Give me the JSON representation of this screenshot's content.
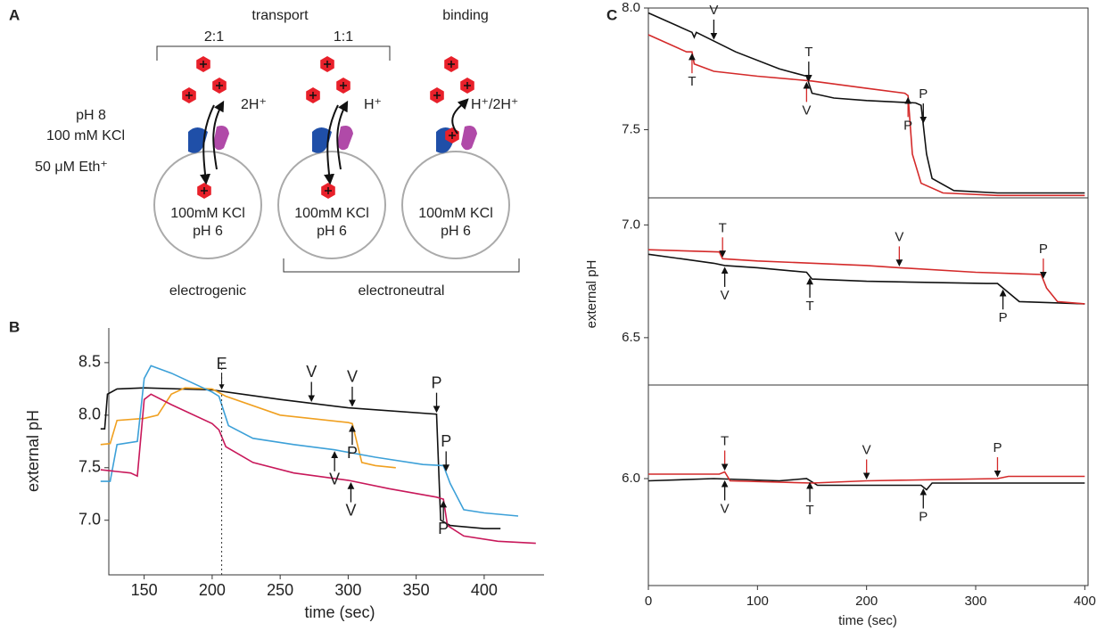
{
  "panel_labels": [
    "A",
    "B",
    "C"
  ],
  "diagram": {
    "top_labels": [
      "transport",
      "binding"
    ],
    "ratios": [
      "2:1",
      "1:1"
    ],
    "outside": [
      "pH 8",
      "100 mM KCl",
      "50 μM Eth⁺"
    ],
    "fluxes": [
      "2H⁺",
      "H⁺",
      "H⁺/2H⁺"
    ],
    "vesicles": [
      [
        "100mM KCl",
        "pH 6"
      ],
      [
        "100mM KCl",
        "pH 6"
      ],
      [
        "100mM KCl",
        "pH 6"
      ]
    ],
    "bottom_labels": [
      "electrogenic",
      "electroneutral"
    ]
  },
  "chart_data": [
    {
      "type": "line",
      "xlabel": "time (sec)",
      "ylabel": "external pH",
      "xlim": [
        124,
        444
      ],
      "ylim": [
        6.48,
        8.83
      ],
      "xticks": [
        150,
        200,
        250,
        300,
        350,
        400
      ],
      "yticks": [
        {
          "value": 7,
          "label": "7.0"
        },
        7.5,
        {
          "value": 8,
          "label": "8.0"
        },
        8.5
      ],
      "box": false,
      "annotation_color": "#111111",
      "reference_line": {
        "x": 207,
        "label": "E"
      },
      "series": [
        {
          "color": "#111111",
          "annotations": [
            "V",
            "V",
            "P"
          ],
          "x": [
            118,
            121,
            123,
            130,
            150,
            200,
            250,
            300,
            365,
            368,
            375,
            400,
            412
          ],
          "values": [
            7.87,
            7.87,
            8.2,
            8.25,
            8.26,
            8.24,
            8.15,
            8.07,
            8.01,
            7.0,
            6.95,
            6.92,
            6.92
          ]
        },
        {
          "color": "#f0a020",
          "annotations": [
            "P"
          ],
          "x": [
            118,
            125,
            130,
            150,
            160,
            170,
            180,
            200,
            210,
            250,
            300,
            303,
            310,
            320,
            335
          ],
          "values": [
            7.72,
            7.73,
            7.95,
            7.97,
            8.0,
            8.2,
            8.26,
            8.25,
            8.18,
            8.0,
            7.93,
            7.92,
            7.55,
            7.52,
            7.5
          ]
        },
        {
          "color": "#3ca0d8",
          "annotations": [
            "V",
            "P"
          ],
          "x": [
            118,
            125,
            130,
            145,
            150,
            155,
            170,
            200,
            205,
            212,
            230,
            260,
            290,
            320,
            355,
            370,
            375,
            385,
            400,
            425
          ],
          "values": [
            7.37,
            7.37,
            7.72,
            7.75,
            8.35,
            8.47,
            8.4,
            8.22,
            8.18,
            7.9,
            7.78,
            7.72,
            7.67,
            7.6,
            7.53,
            7.52,
            7.35,
            7.1,
            7.07,
            7.04
          ]
        },
        {
          "color": "#c8185a",
          "annotations": [
            "V",
            "P"
          ],
          "x": [
            118,
            140,
            145,
            150,
            155,
            170,
            200,
            205,
            210,
            230,
            260,
            300,
            330,
            365,
            370,
            373,
            385,
            410,
            438
          ],
          "values": [
            7.48,
            7.45,
            7.42,
            8.15,
            8.2,
            8.1,
            7.92,
            7.86,
            7.7,
            7.55,
            7.45,
            7.38,
            7.3,
            7.22,
            7.2,
            6.95,
            6.85,
            6.8,
            6.78
          ]
        }
      ]
    },
    {
      "type": "line",
      "xlim": [
        0,
        403
      ],
      "ylim": [
        7.22,
        8.0
      ],
      "yticks": [
        {
          "value": 8,
          "label": "8.0"
        },
        7.5
      ],
      "box": true,
      "series": [
        {
          "color": "#111111",
          "annotations": [
            "V",
            "T",
            "P"
          ],
          "x": [
            0,
            40,
            42,
            44,
            80,
            120,
            145,
            150,
            170,
            200,
            245,
            250,
            255,
            260,
            280,
            320,
            400
          ],
          "values": [
            7.98,
            7.9,
            7.88,
            7.9,
            7.82,
            7.75,
            7.72,
            7.65,
            7.63,
            7.62,
            7.61,
            7.6,
            7.4,
            7.3,
            7.25,
            7.24,
            7.24
          ]
        },
        {
          "color": "#d42a2a",
          "annotations": [
            "T",
            "V",
            "P"
          ],
          "x": [
            0,
            35,
            40,
            42,
            60,
            100,
            150,
            200,
            235,
            238,
            242,
            250,
            270,
            320,
            400
          ],
          "values": [
            7.89,
            7.82,
            7.82,
            7.77,
            7.74,
            7.72,
            7.7,
            7.67,
            7.65,
            7.64,
            7.4,
            7.28,
            7.24,
            7.23,
            7.23
          ]
        }
      ]
    },
    {
      "type": "line",
      "ylabel": "external pH",
      "xlim": [
        0,
        403
      ],
      "ylim": [
        6.29,
        7.12
      ],
      "yticks": [
        {
          "value": 7,
          "label": "7.0"
        },
        6.5
      ],
      "box": true,
      "series": [
        {
          "color": "#111111",
          "annotations": [
            "V",
            "T",
            "P"
          ],
          "x": [
            0,
            60,
            70,
            100,
            145,
            150,
            200,
            310,
            320,
            330,
            340,
            400
          ],
          "values": [
            6.87,
            6.83,
            6.82,
            6.81,
            6.79,
            6.76,
            6.75,
            6.74,
            6.74,
            6.7,
            6.66,
            6.65
          ]
        },
        {
          "color": "#d42a2a",
          "annotations": [
            "T",
            "V",
            "P"
          ],
          "x": [
            0,
            65,
            68,
            100,
            200,
            230,
            300,
            360,
            365,
            375,
            400
          ],
          "values": [
            6.89,
            6.88,
            6.85,
            6.84,
            6.82,
            6.81,
            6.79,
            6.78,
            6.72,
            6.66,
            6.65
          ]
        }
      ]
    },
    {
      "type": "line",
      "xlabel": "time (sec)",
      "xlim": [
        0,
        403
      ],
      "ylim": [
        5.52,
        6.42
      ],
      "xticks": [
        0,
        100,
        200,
        300,
        400
      ],
      "yticks": [
        {
          "value": 6,
          "label": "6.0"
        }
      ],
      "box": true,
      "series": [
        {
          "color": "#111111",
          "annotations": [
            "V",
            "T",
            "P"
          ],
          "x": [
            0,
            60,
            120,
            145,
            155,
            250,
            255,
            260,
            400
          ],
          "values": [
            5.99,
            6.0,
            5.99,
            6.0,
            5.97,
            5.97,
            5.95,
            5.98,
            5.98
          ]
        },
        {
          "color": "#d42a2a",
          "annotations": [
            "T",
            "V",
            "P"
          ],
          "x": [
            0,
            65,
            70,
            75,
            150,
            200,
            320,
            330,
            400
          ],
          "values": [
            6.02,
            6.02,
            6.03,
            5.99,
            5.98,
            5.99,
            6.0,
            6.01,
            6.01
          ]
        }
      ]
    }
  ]
}
